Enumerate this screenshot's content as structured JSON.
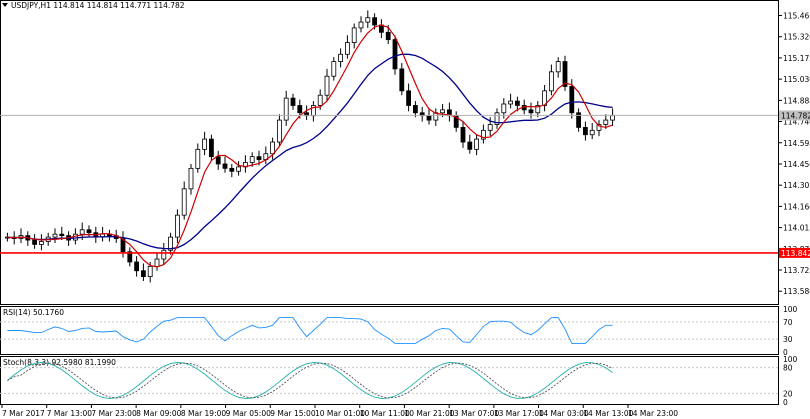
{
  "symbol_header": "USDJPY,H1  114.814 114.814 114.771 114.782",
  "price_axis": {
    "ticks": [
      "115.465",
      "115.320",
      "115.175",
      "115.030",
      "114.885",
      "114.740",
      "114.595",
      "114.450",
      "114.305",
      "114.160",
      "114.015",
      "113.870",
      "113.725",
      "113.580"
    ],
    "range": [
      113.52,
      115.53
    ],
    "current_price_label": "114.782",
    "current_price": 114.782,
    "support_label": "113.842",
    "support_price": 113.842
  },
  "rsi": {
    "label": "RSI(14) 50.1760",
    "ticks": [
      "100",
      "70",
      "30",
      "0"
    ]
  },
  "stoch": {
    "label": "Stoch(8,3,3) 92.5980 81.1990",
    "ticks": [
      "100",
      "80",
      "20",
      "0"
    ]
  },
  "time_axis": [
    "7 Mar 2017",
    "7 Mar 13:00",
    "7 Mar 23:00",
    "8 Mar 09:00",
    "8 Mar 19:00",
    "9 Mar 05:00",
    "9 Mar 15:00",
    "10 Mar 01:00",
    "10 Mar 11:00",
    "10 Mar 21:00",
    "13 Mar 07:00",
    "13 Mar 17:00",
    "14 Mar 03:00",
    "14 Mar 13:00",
    "14 Mar 23:00"
  ],
  "chart_data": {
    "type": "line",
    "title": "USDJPY,H1",
    "xlabel": "",
    "ylabel": "",
    "ylim": [
      113.52,
      115.53
    ],
    "series": [
      {
        "values": [
          113.95,
          113.94,
          113.96,
          113.93,
          113.9,
          113.92,
          113.95,
          113.97,
          113.96,
          113.93,
          113.97,
          114.0,
          113.98,
          113.95,
          113.97,
          113.96,
          113.94,
          113.85,
          113.78,
          113.72,
          113.68,
          113.75,
          113.8,
          113.86,
          113.95,
          114.1,
          114.28,
          114.42,
          114.55,
          114.62,
          114.5,
          114.45,
          114.42,
          114.4,
          114.43,
          114.46,
          114.5,
          114.48,
          114.52,
          114.6,
          114.75,
          114.9,
          114.85,
          114.8,
          114.78,
          114.85,
          114.92,
          115.05,
          115.15,
          115.2,
          115.28,
          115.38,
          115.42,
          115.45,
          115.4,
          115.35,
          115.3,
          115.1,
          114.95,
          114.85,
          114.8,
          114.78,
          114.75,
          114.8,
          114.82,
          114.78,
          114.7,
          114.6,
          114.55,
          114.62,
          114.68,
          114.72,
          114.8,
          114.86,
          114.88,
          114.85,
          114.82,
          114.8,
          114.85,
          114.95,
          115.08,
          115.15,
          114.98,
          114.8,
          114.7,
          114.65,
          114.68,
          114.72,
          114.75,
          114.78
        ]
      }
    ]
  }
}
